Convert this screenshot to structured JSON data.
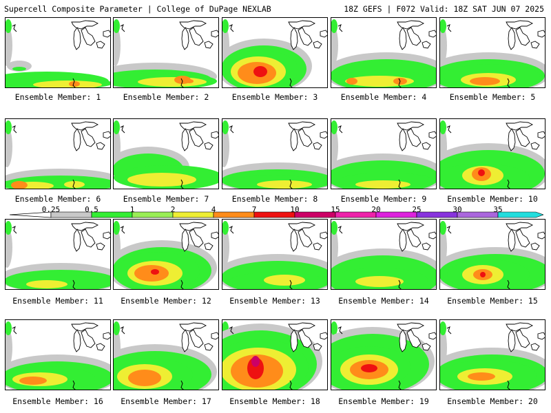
{
  "header": {
    "title": "Supercell Composite Parameter | College of DuPage NEXLAB",
    "run_info": "18Z GEFS | F072 Valid: 18Z SAT JUN 07 2025"
  },
  "colorbar": {
    "labels": [
      "0.25",
      "0.5",
      "1",
      "2",
      "4",
      "7",
      "10",
      "15",
      "20",
      "25",
      "30",
      "35"
    ],
    "colors": [
      "#c8c8c8",
      "#33ee33",
      "#99ee55",
      "#eeee33",
      "#ff8c1a",
      "#ee1111",
      "#cc0066",
      "#ee22aa",
      "#dd22dd",
      "#8833dd",
      "#aa66dd",
      "#22dddd"
    ]
  },
  "panels": [
    {
      "caption": "Ensemble Member: 1"
    },
    {
      "caption": "Ensemble Member: 2"
    },
    {
      "caption": "Ensemble Member: 3"
    },
    {
      "caption": "Ensemble Member: 4"
    },
    {
      "caption": "Ensemble Member: 5"
    },
    {
      "caption": "Ensemble Member: 6"
    },
    {
      "caption": "Ensemble Member: 7"
    },
    {
      "caption": "Ensemble Member: 8"
    },
    {
      "caption": "Ensemble Member: 9"
    },
    {
      "caption": "Ensemble Member: 10"
    },
    {
      "caption": "Ensemble Member: 11"
    },
    {
      "caption": "Ensemble Member: 12"
    },
    {
      "caption": "Ensemble Member: 13"
    },
    {
      "caption": "Ensemble Member: 14"
    },
    {
      "caption": "Ensemble Member: 15"
    },
    {
      "caption": "Ensemble Member: 16"
    },
    {
      "caption": "Ensemble Member: 17"
    },
    {
      "caption": "Ensemble Member: 18"
    },
    {
      "caption": "Ensemble Member: 19"
    },
    {
      "caption": "Ensemble Member: 20"
    }
  ]
}
